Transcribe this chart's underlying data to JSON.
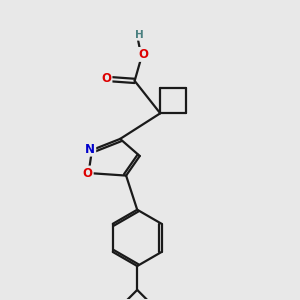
{
  "bg_color": "#e8e8e8",
  "bond_color": "#1a1a1a",
  "bond_width": 1.6,
  "atom_colors": {
    "O": "#dd0000",
    "N": "#0000cc",
    "H": "#4a8080",
    "C": "#1a1a1a"
  },
  "font_size_atom": 8.5,
  "font_size_H": 7.5,
  "fig_size": [
    3.0,
    3.0
  ],
  "dpi": 100
}
